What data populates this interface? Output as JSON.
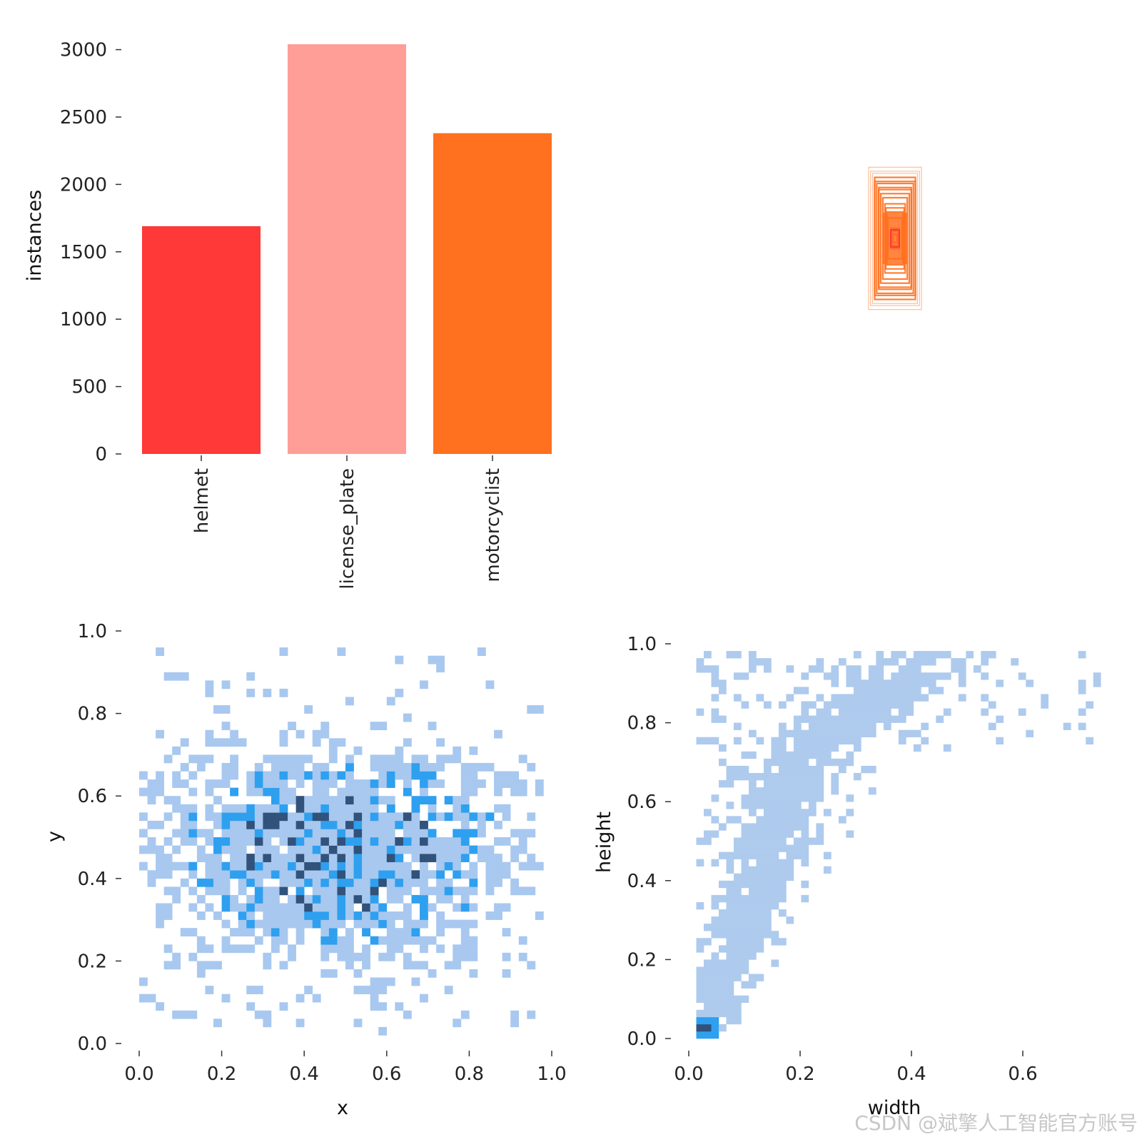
{
  "watermark": "CSDN @斌擎人工智能官方账号",
  "chart_data": [
    {
      "type": "bar",
      "categories": [
        "helmet",
        "license_plate",
        "motorcyclist"
      ],
      "values": [
        1690,
        3040,
        2380
      ],
      "colors": [
        "#ff3838",
        "#ff9d97",
        "#ff701f"
      ],
      "xlabel": "",
      "ylabel": "instances",
      "ylim": [
        0,
        3040
      ],
      "yticks": [
        "0",
        "500",
        "1000",
        "1500",
        "2000",
        "2500",
        "3000"
      ],
      "grid": false
    },
    {
      "type": "box-overlay",
      "description_color": "#ff701f",
      "center_color": "#ff3838",
      "box_color": "#ff701f",
      "boxes_wh": [
        [
          0.13,
          0.35
        ],
        [
          0.12,
          0.33
        ],
        [
          0.11,
          0.32
        ],
        [
          0.1,
          0.3
        ],
        [
          0.1,
          0.28
        ],
        [
          0.09,
          0.27
        ],
        [
          0.08,
          0.25
        ],
        [
          0.08,
          0.24
        ],
        [
          0.07,
          0.22
        ],
        [
          0.06,
          0.2
        ],
        [
          0.05,
          0.17
        ],
        [
          0.045,
          0.15
        ],
        [
          0.04,
          0.13
        ],
        [
          0.035,
          0.1
        ],
        [
          0.02,
          0.05
        ],
        [
          0.015,
          0.035
        ],
        [
          0.01,
          0.02
        ]
      ]
    },
    {
      "type": "heatmap",
      "xlabel": "x",
      "ylabel": "y",
      "xlim": [
        0.0,
        1.0
      ],
      "ylim": [
        0.0,
        1.0
      ],
      "xticks": [
        "0.0",
        "0.2",
        "0.4",
        "0.6",
        "0.8",
        "1.0"
      ],
      "yticks": [
        "0.0",
        "0.2",
        "0.4",
        "0.6",
        "0.8",
        "1.0"
      ],
      "bins": 50,
      "colormap": [
        "#a8c8ef",
        "#2ea0ef",
        "#31527a"
      ],
      "grid": false
    },
    {
      "type": "heatmap",
      "xlabel": "width",
      "ylabel": "height",
      "xlim": [
        0.0,
        0.74
      ],
      "ylim": [
        0.0,
        1.0
      ],
      "xticks": [
        "0.0",
        "0.2",
        "0.4",
        "0.6"
      ],
      "yticks": [
        "0.0",
        "0.2",
        "0.4",
        "0.6",
        "0.8",
        "1.0"
      ],
      "bins": 55,
      "colormap": [
        "#aecbee",
        "#2ea0ef",
        "#31527a"
      ],
      "grid": false
    }
  ]
}
